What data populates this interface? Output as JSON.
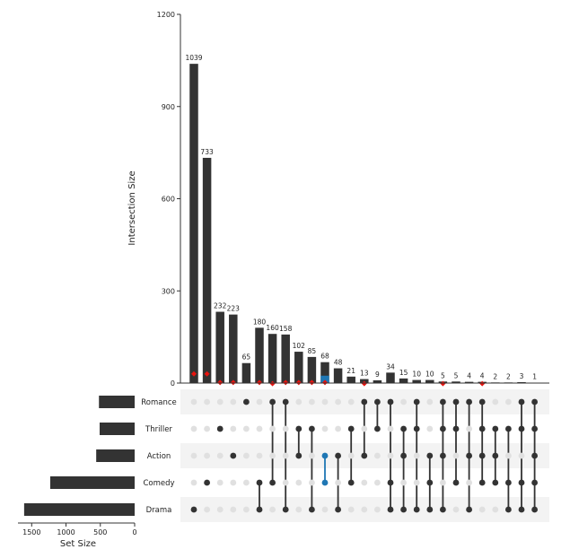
{
  "chart_data": {
    "type": "upset",
    "ylabel": "Intersection Size",
    "xlabel_sets": "Set Size",
    "ylim": [
      0,
      1200
    ],
    "yticks": [
      0,
      300,
      600,
      900,
      1200
    ],
    "set_size_ticks": [
      1500,
      1000,
      500,
      0
    ],
    "sets": [
      "Romance",
      "Thriller",
      "Action",
      "Comedy",
      "Drama"
    ],
    "set_sizes": [
      520,
      510,
      560,
      1230,
      1610
    ],
    "intersections": [
      {
        "value": 1039,
        "sets": [
          "Drama"
        ]
      },
      {
        "value": 733,
        "sets": [
          "Comedy"
        ]
      },
      {
        "value": 232,
        "sets": [
          "Thriller"
        ]
      },
      {
        "value": 223,
        "sets": [
          "Action"
        ]
      },
      {
        "value": 65,
        "sets": [
          "Romance"
        ]
      },
      {
        "value": 180,
        "sets": [
          "Comedy",
          "Drama"
        ]
      },
      {
        "value": 160,
        "sets": [
          "Romance",
          "Comedy"
        ]
      },
      {
        "value": 158,
        "sets": [
          "Romance",
          "Drama"
        ]
      },
      {
        "value": 102,
        "sets": [
          "Thriller",
          "Action"
        ]
      },
      {
        "value": 85,
        "sets": [
          "Thriller",
          "Drama"
        ]
      },
      {
        "value": 68,
        "sets": [
          "Action",
          "Comedy"
        ],
        "highlight": true
      },
      {
        "value": 48,
        "sets": [
          "Action",
          "Drama"
        ]
      },
      {
        "value": 21,
        "sets": [
          "Thriller",
          "Comedy"
        ]
      },
      {
        "value": 13,
        "sets": [
          "Romance",
          "Action"
        ]
      },
      {
        "value": 9,
        "sets": [
          "Romance",
          "Thriller"
        ]
      },
      {
        "value": 34,
        "sets": [
          "Romance",
          "Comedy",
          "Drama"
        ]
      },
      {
        "value": 15,
        "sets": [
          "Thriller",
          "Action",
          "Drama"
        ]
      },
      {
        "value": 10,
        "sets": [
          "Romance",
          "Thriller",
          "Drama"
        ]
      },
      {
        "value": 10,
        "sets": [
          "Action",
          "Comedy",
          "Drama"
        ]
      },
      {
        "value": 5,
        "sets": [
          "Romance",
          "Thriller",
          "Action",
          "Drama"
        ]
      },
      {
        "value": 5,
        "sets": [
          "Romance",
          "Thriller",
          "Comedy"
        ]
      },
      {
        "value": 4,
        "sets": [
          "Romance",
          "Action",
          "Drama"
        ]
      },
      {
        "value": 4,
        "sets": [
          "Romance",
          "Thriller",
          "Action",
          "Comedy"
        ]
      },
      {
        "value": 2,
        "sets": [
          "Thriller",
          "Action",
          "Comedy"
        ]
      },
      {
        "value": 2,
        "sets": [
          "Thriller",
          "Comedy",
          "Drama"
        ]
      },
      {
        "value": 3,
        "sets": [
          "Romance",
          "Thriller",
          "Comedy",
          "Drama"
        ]
      },
      {
        "value": 1,
        "sets": [
          "Romance",
          "Thriller",
          "Action",
          "Comedy",
          "Drama"
        ]
      }
    ],
    "highlight_overlay": [
      0,
      0,
      0,
      0,
      0,
      0,
      0,
      0,
      0,
      0,
      24,
      0,
      0,
      0,
      0,
      0,
      0,
      0,
      0,
      0,
      0,
      0,
      0,
      0,
      0,
      0,
      0
    ],
    "markers": [
      30,
      30,
      2,
      2,
      0,
      2,
      -2,
      2,
      2,
      2,
      2,
      0,
      0,
      -2,
      0,
      0,
      0,
      0,
      0,
      -2,
      0,
      0,
      -2,
      0,
      0,
      0,
      0
    ],
    "colors": {
      "bar": "#333333",
      "highlight": "#1f77b4",
      "marker": "#e8140f",
      "dot_off": "#e0e0e0",
      "stripe": "#f3f3f3"
    }
  }
}
